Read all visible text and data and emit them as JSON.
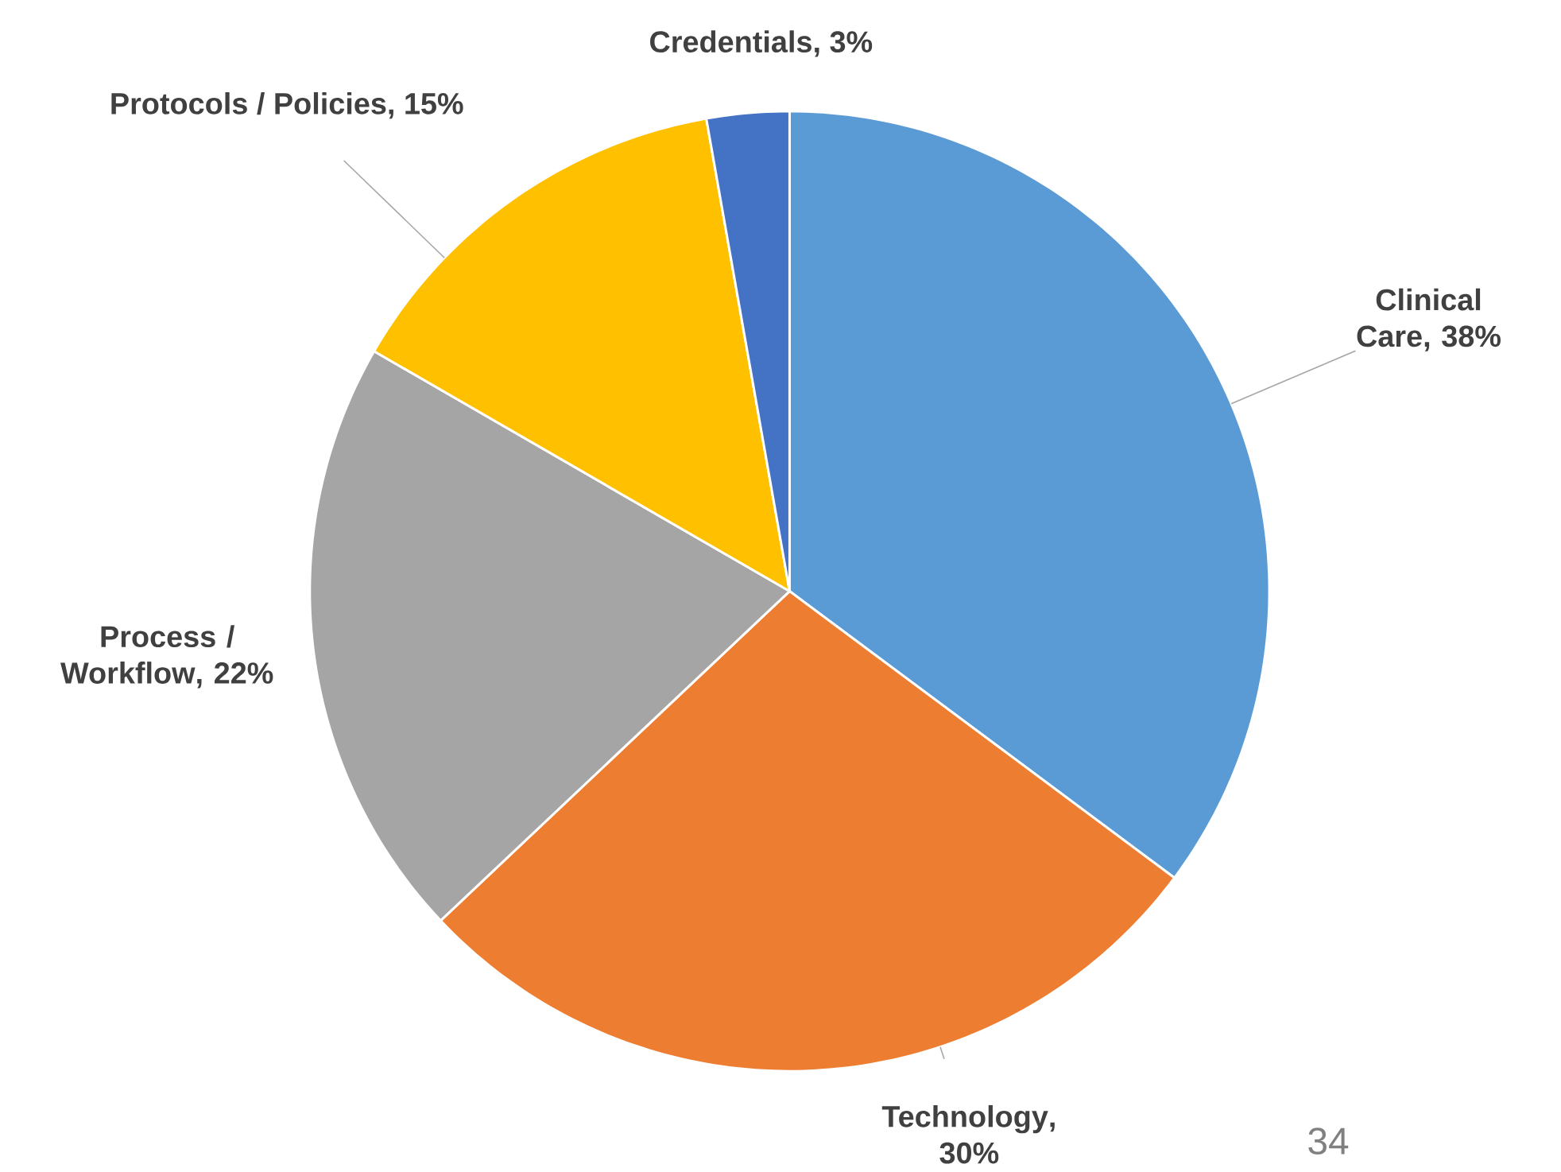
{
  "chart_data": {
    "type": "pie",
    "categories": [
      "Clinical Care",
      "Technology",
      "Process / Workflow",
      "Protocols / Policies",
      "Credentials"
    ],
    "values": [
      38,
      30,
      22,
      15,
      3
    ],
    "value_labels": [
      ", 38%",
      ", 30%",
      ", 22%",
      ", 15%",
      ", 3%"
    ],
    "colors": [
      "#5b9bd5",
      "#ed7d31",
      "#a5a5a5",
      "#ffc000",
      "#4472c4"
    ],
    "annotations": [
      "34"
    ]
  }
}
